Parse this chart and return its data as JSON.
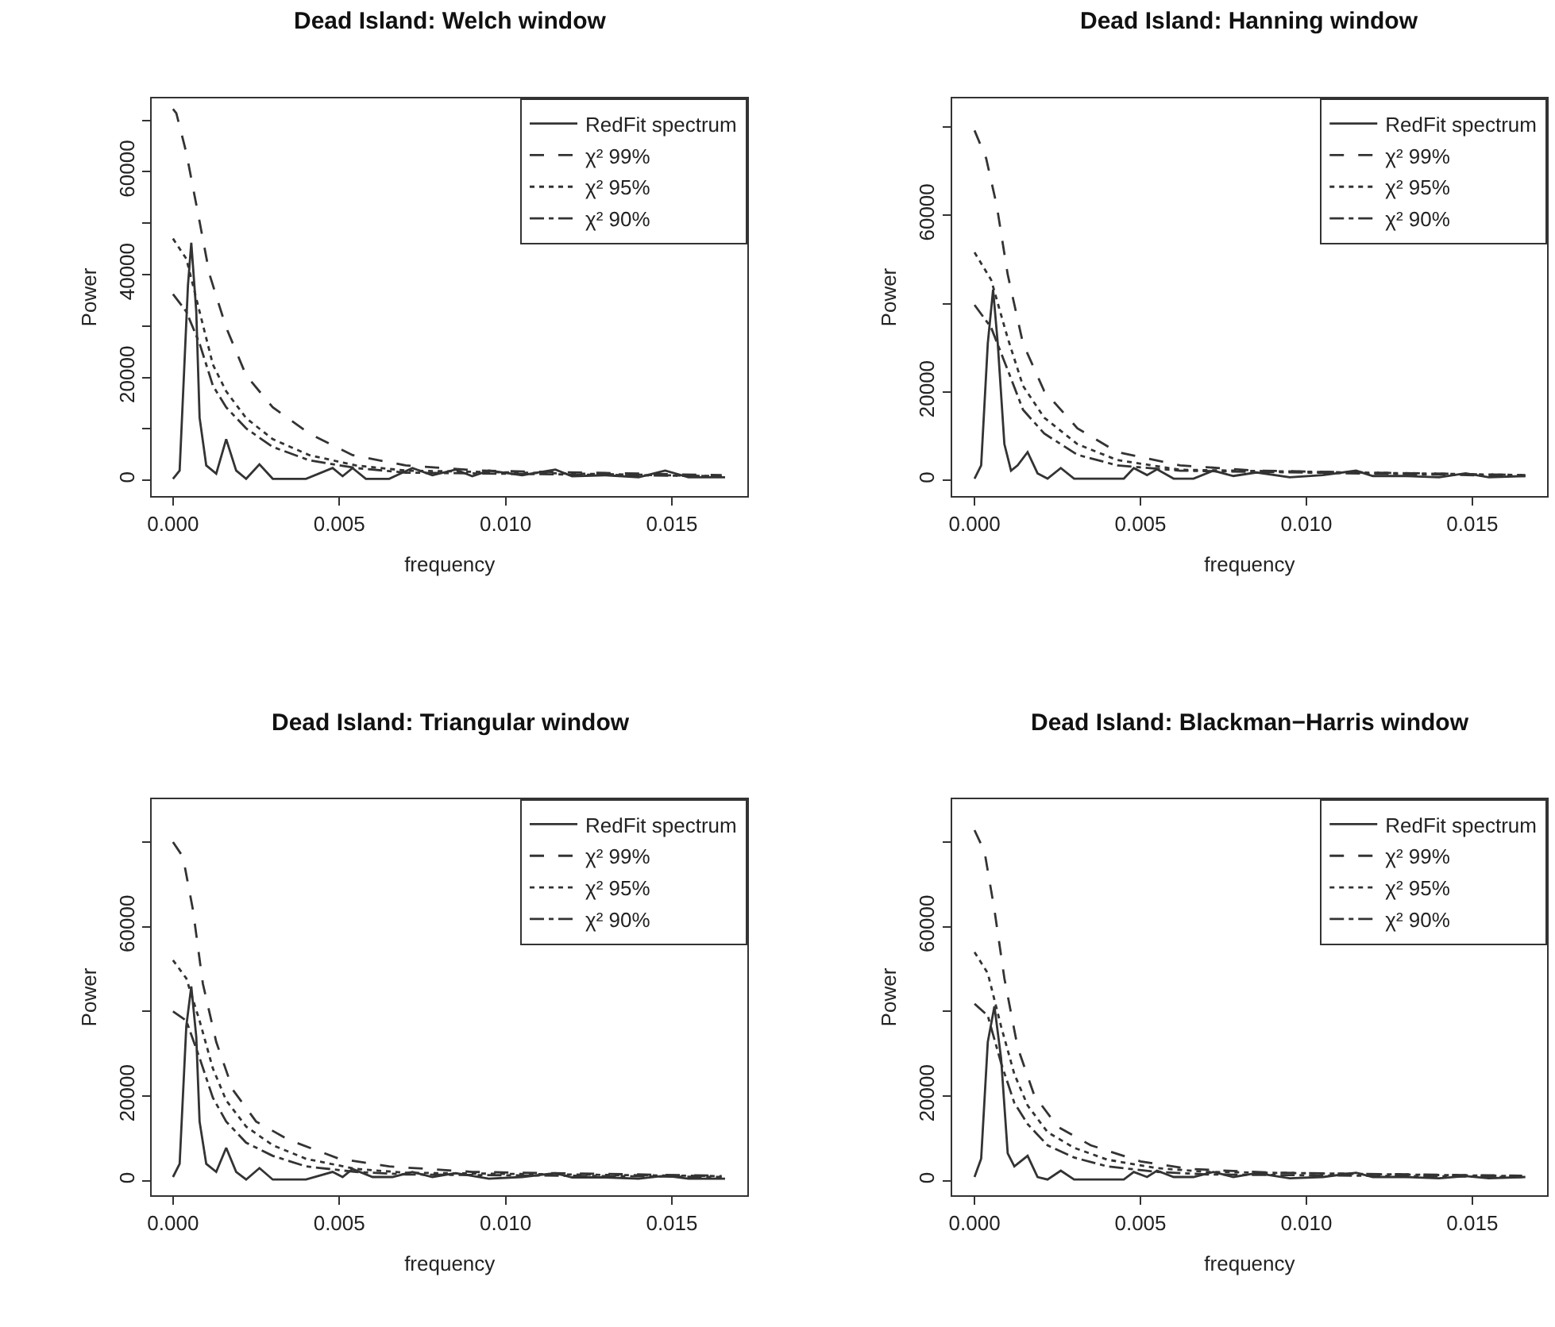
{
  "chart_data": [
    {
      "type": "line",
      "title": "Dead Island: Welch window",
      "xlabel": "frequency",
      "ylabel": "Power",
      "legend": "top right",
      "xlim": [
        -0.00063,
        0.01727
      ],
      "xticks": [
        {
          "value": 0,
          "label": "0.000"
        },
        {
          "value": 0.005,
          "label": "0.005"
        },
        {
          "value": 0.01,
          "label": "0.010"
        },
        {
          "value": 0.015,
          "label": "0.015"
        }
      ],
      "ylim": [
        -3100,
        74300
      ],
      "yticks": [
        0,
        {
          "value": 10000,
          "label": null
        },
        20000,
        {
          "value": 30000,
          "label": null
        },
        40000,
        {
          "value": 50000,
          "label": null
        },
        60000,
        {
          "value": 70000,
          "label": null
        }
      ],
      "series": [
        {
          "name": "RedFit spectrum",
          "color": "#333333",
          "line_style": "solid",
          "x": [
            0,
            0.0002,
            0.00045,
            0.00055,
            0.0007,
            0.0008,
            0.001,
            0.0013,
            0.0016,
            0.0019,
            0.0022,
            0.0026,
            0.003,
            0.004,
            0.0048,
            0.0051,
            0.0054,
            0.0058,
            0.0065,
            0.0072,
            0.0078,
            0.0085,
            0.009,
            0.0095,
            0.0105,
            0.0115,
            0.012,
            0.013,
            0.014,
            0.0148,
            0.0155,
            0.0166
          ],
          "values": [
            300,
            1900,
            37900,
            46200,
            32800,
            12200,
            2900,
            1300,
            8000,
            1900,
            300,
            3100,
            300,
            300,
            2400,
            800,
            2400,
            300,
            300,
            2400,
            1000,
            2100,
            800,
            1900,
            1000,
            2100,
            800,
            1000,
            600,
            1900,
            600,
            600
          ]
        },
        {
          "name": "χ² 99%",
          "color": "#333333",
          "line_style": "dashed",
          "x": [
            0,
            0.0001,
            0.0004,
            0.0008,
            0.0011,
            0.0016,
            0.0022,
            0.003,
            0.0041,
            0.0054,
            0.007,
            0.0092,
            0.0165
          ],
          "values": [
            72200,
            71400,
            63700,
            50300,
            40000,
            29700,
            20400,
            14200,
            9100,
            4900,
            2900,
            1900,
            1000
          ]
        },
        {
          "name": "χ² 95%",
          "color": "#333333",
          "line_style": "dotted",
          "x": [
            0,
            0.0004,
            0.0008,
            0.0012,
            0.0016,
            0.0022,
            0.003,
            0.0041,
            0.0055,
            0.007,
            0.0165
          ],
          "values": [
            47000,
            43100,
            32800,
            22500,
            17300,
            12100,
            8000,
            4900,
            2900,
            1900,
            800
          ]
        },
        {
          "name": "χ² 90%",
          "color": "#333333",
          "line_style": "dashdot",
          "x": [
            0,
            0.0004,
            0.0008,
            0.0012,
            0.0016,
            0.0022,
            0.003,
            0.0041,
            0.0055,
            0.007,
            0.0165
          ],
          "values": [
            36200,
            32800,
            26600,
            18400,
            14200,
            10100,
            6500,
            3900,
            2400,
            1500,
            800
          ]
        }
      ]
    },
    {
      "type": "line",
      "title": "Dead Island: Hanning window",
      "xlabel": "frequency",
      "ylabel": "Power",
      "legend": "top right",
      "xlim": [
        -0.00068,
        0.01726
      ],
      "xticks": [
        {
          "value": 0,
          "label": "0.000"
        },
        {
          "value": 0.005,
          "label": "0.005"
        },
        {
          "value": 0.01,
          "label": "0.010"
        },
        {
          "value": 0.015,
          "label": "0.015"
        }
      ],
      "ylim": [
        -3600,
        86500
      ],
      "yticks": [
        0,
        20000,
        {
          "value": 40000,
          "label": null
        },
        60000,
        {
          "value": 80000,
          "label": null
        }
      ],
      "series": [
        {
          "name": "RedFit spectrum",
          "color": "#333333",
          "line_style": "solid",
          "x": [
            0,
            0.0002,
            0.0004,
            0.00056,
            0.0007,
            0.0009,
            0.0011,
            0.0013,
            0.0016,
            0.0019,
            0.0022,
            0.0026,
            0.003,
            0.0045,
            0.0048,
            0.0052,
            0.0055,
            0.006,
            0.0066,
            0.0072,
            0.0078,
            0.0085,
            0.0095,
            0.0105,
            0.0115,
            0.012,
            0.013,
            0.014,
            0.0148,
            0.0155,
            0.0166
          ],
          "values": [
            400,
            3400,
            31000,
            43200,
            31000,
            8200,
            2200,
            3400,
            6400,
            1600,
            400,
            2800,
            400,
            400,
            2800,
            1200,
            2500,
            400,
            400,
            2200,
            1000,
            1800,
            700,
            1200,
            2200,
            1000,
            1000,
            700,
            1600,
            700,
            1000
          ]
        },
        {
          "name": "χ² 99%",
          "color": "#333333",
          "line_style": "dashed",
          "x": [
            0,
            0.00035,
            0.00067,
            0.001,
            0.00146,
            0.0021,
            0.0031,
            0.0043,
            0.0062,
            0.0085,
            0.0166
          ],
          "values": [
            79200,
            72900,
            62200,
            46600,
            31000,
            20200,
            11800,
            6400,
            3400,
            2200,
            1200
          ]
        },
        {
          "name": "χ² 95%",
          "color": "#333333",
          "line_style": "dotted",
          "x": [
            0,
            0.0005,
            0.001,
            0.00146,
            0.0021,
            0.0031,
            0.0043,
            0.0062,
            0.0166
          ],
          "values": [
            51600,
            45400,
            32200,
            21400,
            14200,
            8200,
            4600,
            2400,
            1200
          ]
        },
        {
          "name": "χ² 90%",
          "color": "#333333",
          "line_style": "dashdot",
          "x": [
            0,
            0.0005,
            0.001,
            0.00146,
            0.0021,
            0.0031,
            0.0043,
            0.0062,
            0.0166
          ],
          "values": [
            39700,
            34600,
            25000,
            16000,
            10600,
            5800,
            3400,
            2200,
            1000
          ]
        }
      ]
    },
    {
      "type": "line",
      "title": "Dead Island: Triangular window",
      "xlabel": "frequency",
      "ylabel": "Power",
      "legend": "top right",
      "xlim": [
        -0.00063,
        0.01727
      ],
      "xticks": [
        {
          "value": 0,
          "label": "0.000"
        },
        {
          "value": 0.005,
          "label": "0.005"
        },
        {
          "value": 0.01,
          "label": "0.010"
        },
        {
          "value": 0.015,
          "label": "0.015"
        }
      ],
      "ylim": [
        -3500,
        90200
      ],
      "yticks": [
        0,
        20000,
        {
          "value": 40000,
          "label": null
        },
        60000,
        {
          "value": 80000,
          "label": null
        }
      ],
      "series": [
        {
          "name": "RedFit spectrum",
          "color": "#333333",
          "line_style": "solid",
          "x": [
            0,
            0.0002,
            0.0004,
            0.00055,
            0.0007,
            0.0008,
            0.001,
            0.0013,
            0.0016,
            0.0019,
            0.0022,
            0.0026,
            0.003,
            0.004,
            0.0048,
            0.0051,
            0.0054,
            0.006,
            0.0066,
            0.0072,
            0.0078,
            0.0085,
            0.0095,
            0.0105,
            0.0115,
            0.012,
            0.013,
            0.014,
            0.0148,
            0.0155,
            0.0166
          ],
          "values": [
            900,
            4000,
            36500,
            45900,
            34000,
            14000,
            4000,
            2100,
            7800,
            2100,
            300,
            3000,
            300,
            300,
            2100,
            900,
            2800,
            900,
            900,
            2100,
            900,
            1800,
            500,
            900,
            1800,
            800,
            800,
            500,
            1200,
            500,
            500
          ]
        },
        {
          "name": "χ² 99%",
          "color": "#333333",
          "line_style": "dashed",
          "x": [
            0,
            0.0003,
            0.0006,
            0.0009,
            0.0013,
            0.0018,
            0.0025,
            0.0035,
            0.005,
            0.0065,
            0.009,
            0.0165
          ],
          "values": [
            80000,
            76500,
            64000,
            46500,
            32800,
            21500,
            14000,
            9600,
            5200,
            3400,
            2100,
            1200
          ]
        },
        {
          "name": "χ² 95%",
          "color": "#333333",
          "line_style": "dotted",
          "x": [
            0,
            0.0004,
            0.0008,
            0.0012,
            0.0016,
            0.0022,
            0.003,
            0.004,
            0.0055,
            0.007,
            0.0165
          ],
          "values": [
            52100,
            47800,
            37800,
            26500,
            19000,
            12800,
            8400,
            5200,
            2800,
            1900,
            1100
          ]
        },
        {
          "name": "χ² 90%",
          "color": "#333333",
          "line_style": "dashdot",
          "x": [
            0,
            0.0004,
            0.0008,
            0.0012,
            0.0016,
            0.0022,
            0.003,
            0.004,
            0.0055,
            0.007,
            0.0165
          ],
          "values": [
            40000,
            37800,
            29000,
            19600,
            14000,
            9000,
            5900,
            3400,
            2100,
            1500,
            900
          ]
        }
      ]
    },
    {
      "type": "line",
      "title": "Dead Island: Blackman−Harris window",
      "xlabel": "frequency",
      "ylabel": "Power",
      "legend": "top right",
      "xlim": [
        -0.00068,
        0.01726
      ],
      "xticks": [
        {
          "value": 0,
          "label": "0.000"
        },
        {
          "value": 0.005,
          "label": "0.005"
        },
        {
          "value": 0.01,
          "label": "0.010"
        },
        {
          "value": 0.015,
          "label": "0.015"
        }
      ],
      "ylim": [
        -3500,
        90200
      ],
      "yticks": [
        0,
        20000,
        {
          "value": 40000,
          "label": null
        },
        60000,
        {
          "value": 80000,
          "label": null
        }
      ],
      "series": [
        {
          "name": "RedFit spectrum",
          "color": "#333333",
          "line_style": "solid",
          "x": [
            0,
            0.0002,
            0.0004,
            0.0006,
            0.0008,
            0.001,
            0.0012,
            0.0016,
            0.0019,
            0.0022,
            0.0026,
            0.003,
            0.0045,
            0.0048,
            0.0052,
            0.0055,
            0.006,
            0.0066,
            0.0072,
            0.0078,
            0.0085,
            0.0095,
            0.0105,
            0.0115,
            0.012,
            0.013,
            0.014,
            0.0148,
            0.0155,
            0.0166
          ],
          "values": [
            900,
            5200,
            32800,
            41200,
            29000,
            6500,
            3400,
            5900,
            900,
            300,
            2400,
            300,
            300,
            2100,
            900,
            2400,
            900,
            900,
            2100,
            900,
            1800,
            600,
            900,
            1900,
            900,
            900,
            600,
            1100,
            600,
            900
          ]
        },
        {
          "name": "χ² 99%",
          "color": "#333333",
          "line_style": "dashed",
          "x": [
            0,
            0.0003,
            0.0006,
            0.0009,
            0.0013,
            0.0018,
            0.0025,
            0.0035,
            0.005,
            0.0065,
            0.009,
            0.0165
          ],
          "values": [
            82800,
            77800,
            64000,
            47800,
            31500,
            20200,
            12800,
            8400,
            4600,
            2800,
            1900,
            1200
          ]
        },
        {
          "name": "χ² 95%",
          "color": "#333333",
          "line_style": "dotted",
          "x": [
            0,
            0.0004,
            0.0008,
            0.0012,
            0.0016,
            0.0022,
            0.003,
            0.004,
            0.0055,
            0.007,
            0.0165
          ],
          "values": [
            54000,
            49000,
            36500,
            25200,
            17800,
            11500,
            7800,
            5000,
            3000,
            2100,
            1100
          ]
        },
        {
          "name": "χ² 90%",
          "color": "#333333",
          "line_style": "dashdot",
          "x": [
            0,
            0.0004,
            0.0008,
            0.0012,
            0.0016,
            0.0022,
            0.003,
            0.004,
            0.0055,
            0.007,
            0.0165
          ],
          "values": [
            41800,
            39000,
            27800,
            18400,
            13400,
            8400,
            5500,
            3400,
            2100,
            1500,
            900
          ]
        }
      ]
    }
  ]
}
